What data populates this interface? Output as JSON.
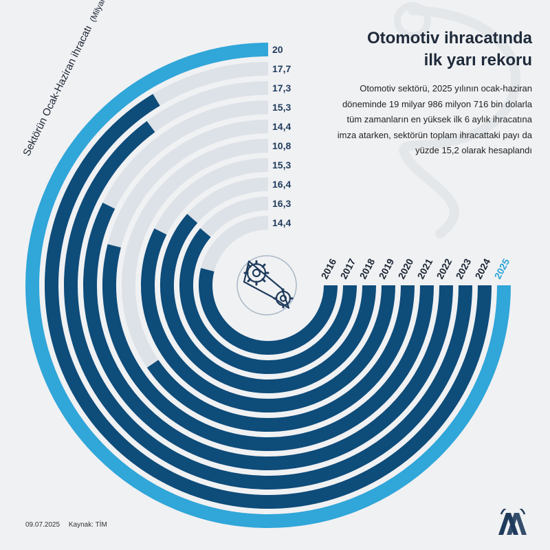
{
  "header": {
    "title_line1": "Otomotiv ihracatında",
    "title_line2": "ilk yarı rekoru",
    "description": "Otomotiv sektörü, 2025 yılının ocak-haziran döneminde 19 milyar 986 milyon 716 bin dolarla tüm zamanların en yüksek ilk 6 aylık ihracatına imza atarken, sektörün toplam ihracattaki payı da yüzde 15,2 olarak hesaplandı"
  },
  "footer": {
    "date": "09.07.2025",
    "source": "Kaynak: TİM"
  },
  "logo": {
    "icon": "aa-logo-icon",
    "color": "#1f3b5c"
  },
  "center_icon": "gear-chain-icon",
  "chart_data": {
    "type": "bar",
    "layout": "radial",
    "axis_title": "Sektörün Ocak-Haziran ihracatı",
    "axis_unit": "(Milyar dolar)",
    "categories": [
      "2016",
      "2017",
      "2018",
      "2019",
      "2020",
      "2021",
      "2022",
      "2023",
      "2024",
      "2025"
    ],
    "values": [
      14.4,
      16.3,
      16.4,
      15.3,
      10.8,
      14.4,
      15.3,
      17.3,
      17.7,
      20
    ],
    "value_labels": [
      "14,4",
      "16,3",
      "16,4",
      "15,3",
      "10,8",
      "14,4",
      "15,3",
      "17,3",
      "17,7",
      "20"
    ],
    "ylim": [
      0,
      20
    ],
    "highlight": "2025",
    "colors": {
      "bar": "#0e4c7a",
      "highlight": "#30a6d9",
      "track": "#dde2e8"
    }
  }
}
